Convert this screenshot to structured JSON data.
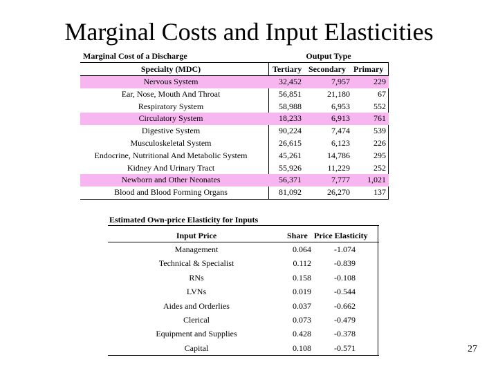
{
  "slide": {
    "title": "Marginal Costs and Input Elasticities",
    "page_number": "27"
  },
  "marginal_cost_table": {
    "caption": "Marginal Cost of a Discharge",
    "group_header": "Output Type",
    "columns": [
      "Specialty (MDC)",
      "Tertiary",
      "Secondary",
      "Primary"
    ],
    "highlight_color": "#f7b6ef",
    "rows": [
      {
        "name": "Nervous System",
        "tertiary": "32,452",
        "secondary": "7,957",
        "primary": "229",
        "highlighted": true
      },
      {
        "name": "Ear, Nose, Mouth And Throat",
        "tertiary": "56,851",
        "secondary": "21,180",
        "primary": "67",
        "highlighted": false
      },
      {
        "name": "Respiratory System",
        "tertiary": "58,988",
        "secondary": "6,953",
        "primary": "552",
        "highlighted": false
      },
      {
        "name": "Circulatory System",
        "tertiary": "18,233",
        "secondary": "6,913",
        "primary": "761",
        "highlighted": true
      },
      {
        "name": "Digestive System",
        "tertiary": "90,224",
        "secondary": "7,474",
        "primary": "539",
        "highlighted": false
      },
      {
        "name": "Musculoskeletal System",
        "tertiary": "26,615",
        "secondary": "6,123",
        "primary": "226",
        "highlighted": false
      },
      {
        "name": "Endocrine, Nutritional And Metabolic System",
        "tertiary": "45,261",
        "secondary": "14,786",
        "primary": "295",
        "highlighted": false
      },
      {
        "name": "Kidney And Urinary Tract",
        "tertiary": "55,926",
        "secondary": "11,229",
        "primary": "252",
        "highlighted": false
      },
      {
        "name": "Newborn and Other Neonates",
        "tertiary": "56,371",
        "secondary": "7,777",
        "primary": "1,021",
        "highlighted": true
      },
      {
        "name": "Blood and Blood Forming Organs",
        "tertiary": "81,092",
        "secondary": "26,270",
        "primary": "137",
        "highlighted": false
      }
    ]
  },
  "elasticity_table": {
    "caption": "Estimated Own-price Elasticity for Inputs",
    "columns": [
      "Input Price",
      "Share",
      "Price Elasticity"
    ],
    "rows": [
      {
        "name": "Management",
        "share": "0.064",
        "elasticity": "-1.074"
      },
      {
        "name": "Technical & Specialist",
        "share": "0.112",
        "elasticity": "-0.839"
      },
      {
        "name": "RNs",
        "share": "0.158",
        "elasticity": "-0.108"
      },
      {
        "name": "LVNs",
        "share": "0.019",
        "elasticity": "-0.544"
      },
      {
        "name": "Aides and Orderlies",
        "share": "0.037",
        "elasticity": "-0.662"
      },
      {
        "name": "Clerical",
        "share": "0.073",
        "elasticity": "-0.479"
      },
      {
        "name": "Equipment and Supplies",
        "share": "0.428",
        "elasticity": "-0.378"
      },
      {
        "name": "Capital",
        "share": "0.108",
        "elasticity": "-0.571"
      }
    ]
  }
}
